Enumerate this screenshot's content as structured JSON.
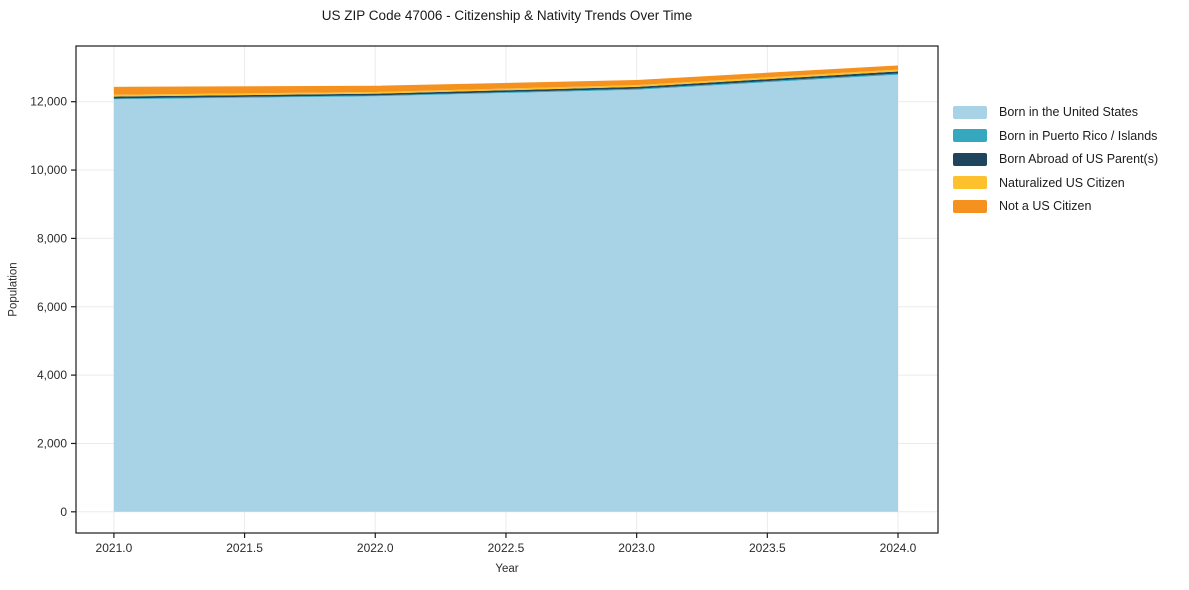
{
  "title": "US ZIP Code 47006 - Citizenship & Nativity Trends Over Time",
  "chart_data": {
    "type": "area",
    "stacked": true,
    "title": "US ZIP Code 47006 - Citizenship & Nativity Trends Over Time",
    "xlabel": "Year",
    "ylabel": "Population",
    "x": [
      2021,
      2022,
      2023,
      2024
    ],
    "series": [
      {
        "name": "Born in the United States",
        "color": "#a8d3e7",
        "values": [
          12070,
          12160,
          12350,
          12790
        ]
      },
      {
        "name": "Born in Puerto Rico / Islands",
        "color": "#35a7bf",
        "values": [
          25,
          25,
          30,
          35
        ]
      },
      {
        "name": "Born Abroad of US Parent(s)",
        "color": "#1f455c",
        "values": [
          55,
          50,
          55,
          60
        ]
      },
      {
        "name": "Naturalized US Citizen",
        "color": "#fcc12c",
        "values": [
          55,
          50,
          50,
          55
        ]
      },
      {
        "name": "Not a US Citizen",
        "color": "#f5911e",
        "values": [
          230,
          180,
          150,
          120
        ]
      }
    ],
    "x_ticks": [
      2021.0,
      2021.5,
      2022.0,
      2022.5,
      2023.0,
      2023.5,
      2024.0
    ],
    "x_tick_labels": [
      "2021.0",
      "2021.5",
      "2022.0",
      "2022.5",
      "2023.0",
      "2023.5",
      "2024.0"
    ],
    "y_ticks": [
      0,
      2000,
      4000,
      6000,
      8000,
      10000,
      12000
    ],
    "y_tick_labels": [
      "0",
      "2,000",
      "4,000",
      "6,000",
      "8,000",
      "10,000",
      "12,000"
    ],
    "xlim": [
      2020.855,
      2024.153
    ],
    "ylim": [
      -620,
      13630
    ],
    "grid": true,
    "legend_position": "right"
  },
  "style": {
    "grid_color": "#ebebeb",
    "spine_color": "#1a1a1a",
    "tick_color": "#1a1a1a",
    "background": "#ffffff"
  }
}
